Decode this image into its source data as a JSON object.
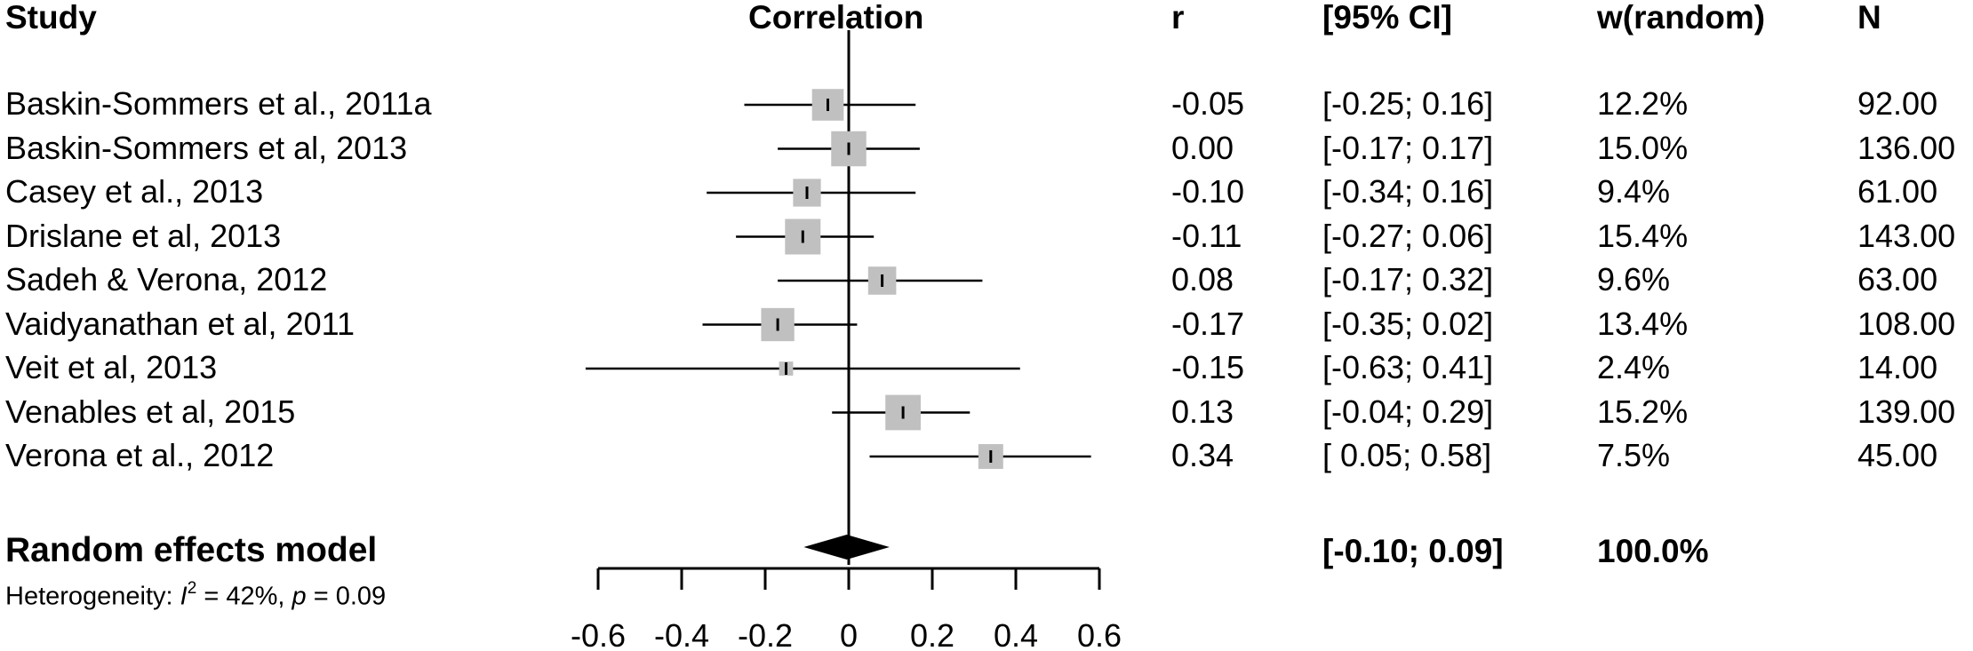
{
  "headers": {
    "study": "Study",
    "correlation": "Correlation",
    "r": "r",
    "ci": "[95% CI]",
    "weight": "w(random)",
    "n": "N"
  },
  "chart_data": {
    "type": "forest",
    "xlim": [
      -0.6,
      0.6
    ],
    "xticks": [
      "-0.6",
      "-0.4",
      "-0.2",
      "0",
      "0.2",
      "0.4",
      "0.6"
    ],
    "studies": [
      {
        "study": "Baskin-Sommers et al., 2011a",
        "r": -0.05,
        "lo": -0.25,
        "hi": 0.16,
        "w": 12.2,
        "r_label": "-0.05",
        "ci_label": "[-0.25; 0.16]",
        "w_label": "12.2%",
        "n_label": "92.00"
      },
      {
        "study": "Baskin-Sommers et al, 2013",
        "r": 0.0,
        "lo": -0.17,
        "hi": 0.17,
        "w": 15.0,
        "r_label": "0.00",
        "ci_label": "[-0.17; 0.17]",
        "w_label": "15.0%",
        "n_label": "136.00"
      },
      {
        "study": "Casey et al., 2013",
        "r": -0.1,
        "lo": -0.34,
        "hi": 0.16,
        "w": 9.4,
        "r_label": "-0.10",
        "ci_label": "[-0.34; 0.16]",
        "w_label": "9.4%",
        "n_label": "61.00"
      },
      {
        "study": "Drislane et al, 2013",
        "r": -0.11,
        "lo": -0.27,
        "hi": 0.06,
        "w": 15.4,
        "r_label": "-0.11",
        "ci_label": "[-0.27; 0.06]",
        "w_label": "15.4%",
        "n_label": "143.00"
      },
      {
        "study": "Sadeh & Verona, 2012",
        "r": 0.08,
        "lo": -0.17,
        "hi": 0.32,
        "w": 9.6,
        "r_label": "0.08",
        "ci_label": "[-0.17; 0.32]",
        "w_label": "9.6%",
        "n_label": "63.00"
      },
      {
        "study": "Vaidyanathan et al, 2011",
        "r": -0.17,
        "lo": -0.35,
        "hi": 0.02,
        "w": 13.4,
        "r_label": "-0.17",
        "ci_label": "[-0.35; 0.02]",
        "w_label": "13.4%",
        "n_label": "108.00"
      },
      {
        "study": "Veit et al, 2013",
        "r": -0.15,
        "lo": -0.63,
        "hi": 0.41,
        "w": 2.4,
        "r_label": "-0.15",
        "ci_label": "[-0.63; 0.41]",
        "w_label": "2.4%",
        "n_label": "14.00"
      },
      {
        "study": "Venables et al, 2015",
        "r": 0.13,
        "lo": -0.04,
        "hi": 0.29,
        "w": 15.2,
        "r_label": "0.13",
        "ci_label": "[-0.04; 0.29]",
        "w_label": "15.2%",
        "n_label": "139.00"
      },
      {
        "study": "Verona et al., 2012",
        "r": 0.34,
        "lo": 0.05,
        "hi": 0.58,
        "w": 7.5,
        "r_label": "0.34",
        "ci_label": "[ 0.05; 0.58]",
        "w_label": "7.5%",
        "n_label": "45.00"
      }
    ],
    "summary": {
      "label": "Random effects model",
      "r": -0.005,
      "lo": -0.1,
      "hi": 0.09,
      "ci_label": "[-0.10; 0.09]",
      "w_label": "100.0%"
    },
    "heterogeneity": {
      "prefix": "Heterogeneity: ",
      "i_symbol": "I",
      "exponent": "2",
      "i2_text": " = 42%, ",
      "p_symbol": "p",
      "p_text": " = 0.09"
    },
    "colors": {
      "box": "#c0c0c0",
      "line": "#000000"
    }
  }
}
